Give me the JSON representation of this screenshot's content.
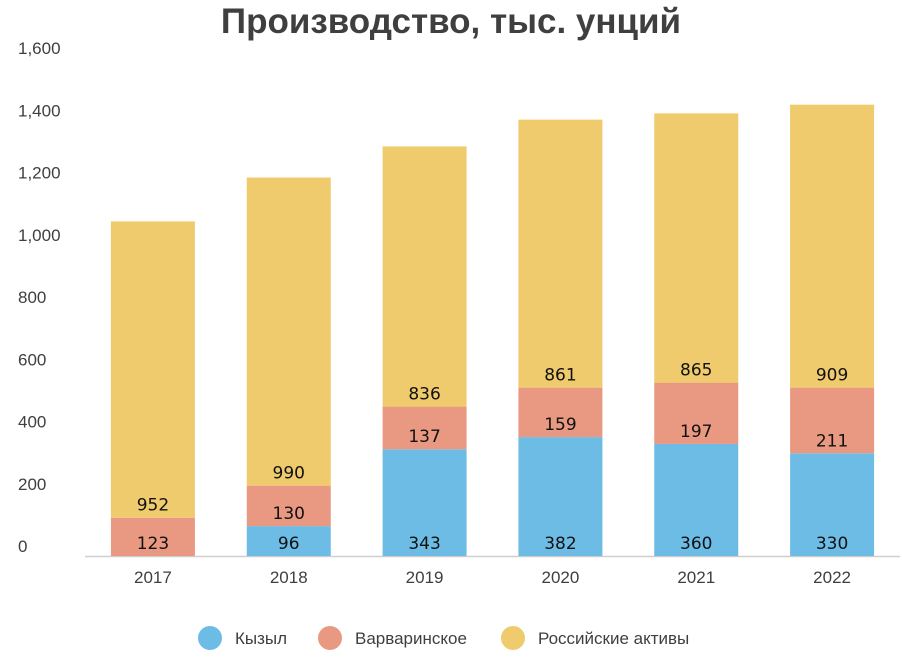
{
  "chart_data": {
    "type": "bar",
    "stacked": true,
    "title": "Производство, тыс. унций",
    "xlabel": "",
    "ylabel": "",
    "categories": [
      "2017",
      "2018",
      "2019",
      "2020",
      "2021",
      "2022"
    ],
    "series": [
      {
        "name": "Кызыл",
        "color": "#6cbce6",
        "values": [
          0,
          96,
          343,
          382,
          360,
          330
        ]
      },
      {
        "name": "Варваринское",
        "color": "#e99982",
        "values": [
          123,
          130,
          137,
          159,
          197,
          211
        ]
      },
      {
        "name": "Российские активы",
        "color": "#efcb6d",
        "values": [
          952,
          990,
          836,
          861,
          865,
          909
        ]
      }
    ],
    "ylim": [
      0,
      1600
    ],
    "yticks": [
      0,
      200,
      400,
      600,
      800,
      1000,
      1200,
      1400,
      1600
    ],
    "ytick_labels": [
      "0",
      "200",
      "400",
      "600",
      "800",
      "1,000",
      "1,200",
      "1,400",
      "1,600"
    ],
    "grid": false,
    "legend_position": "bottom"
  }
}
